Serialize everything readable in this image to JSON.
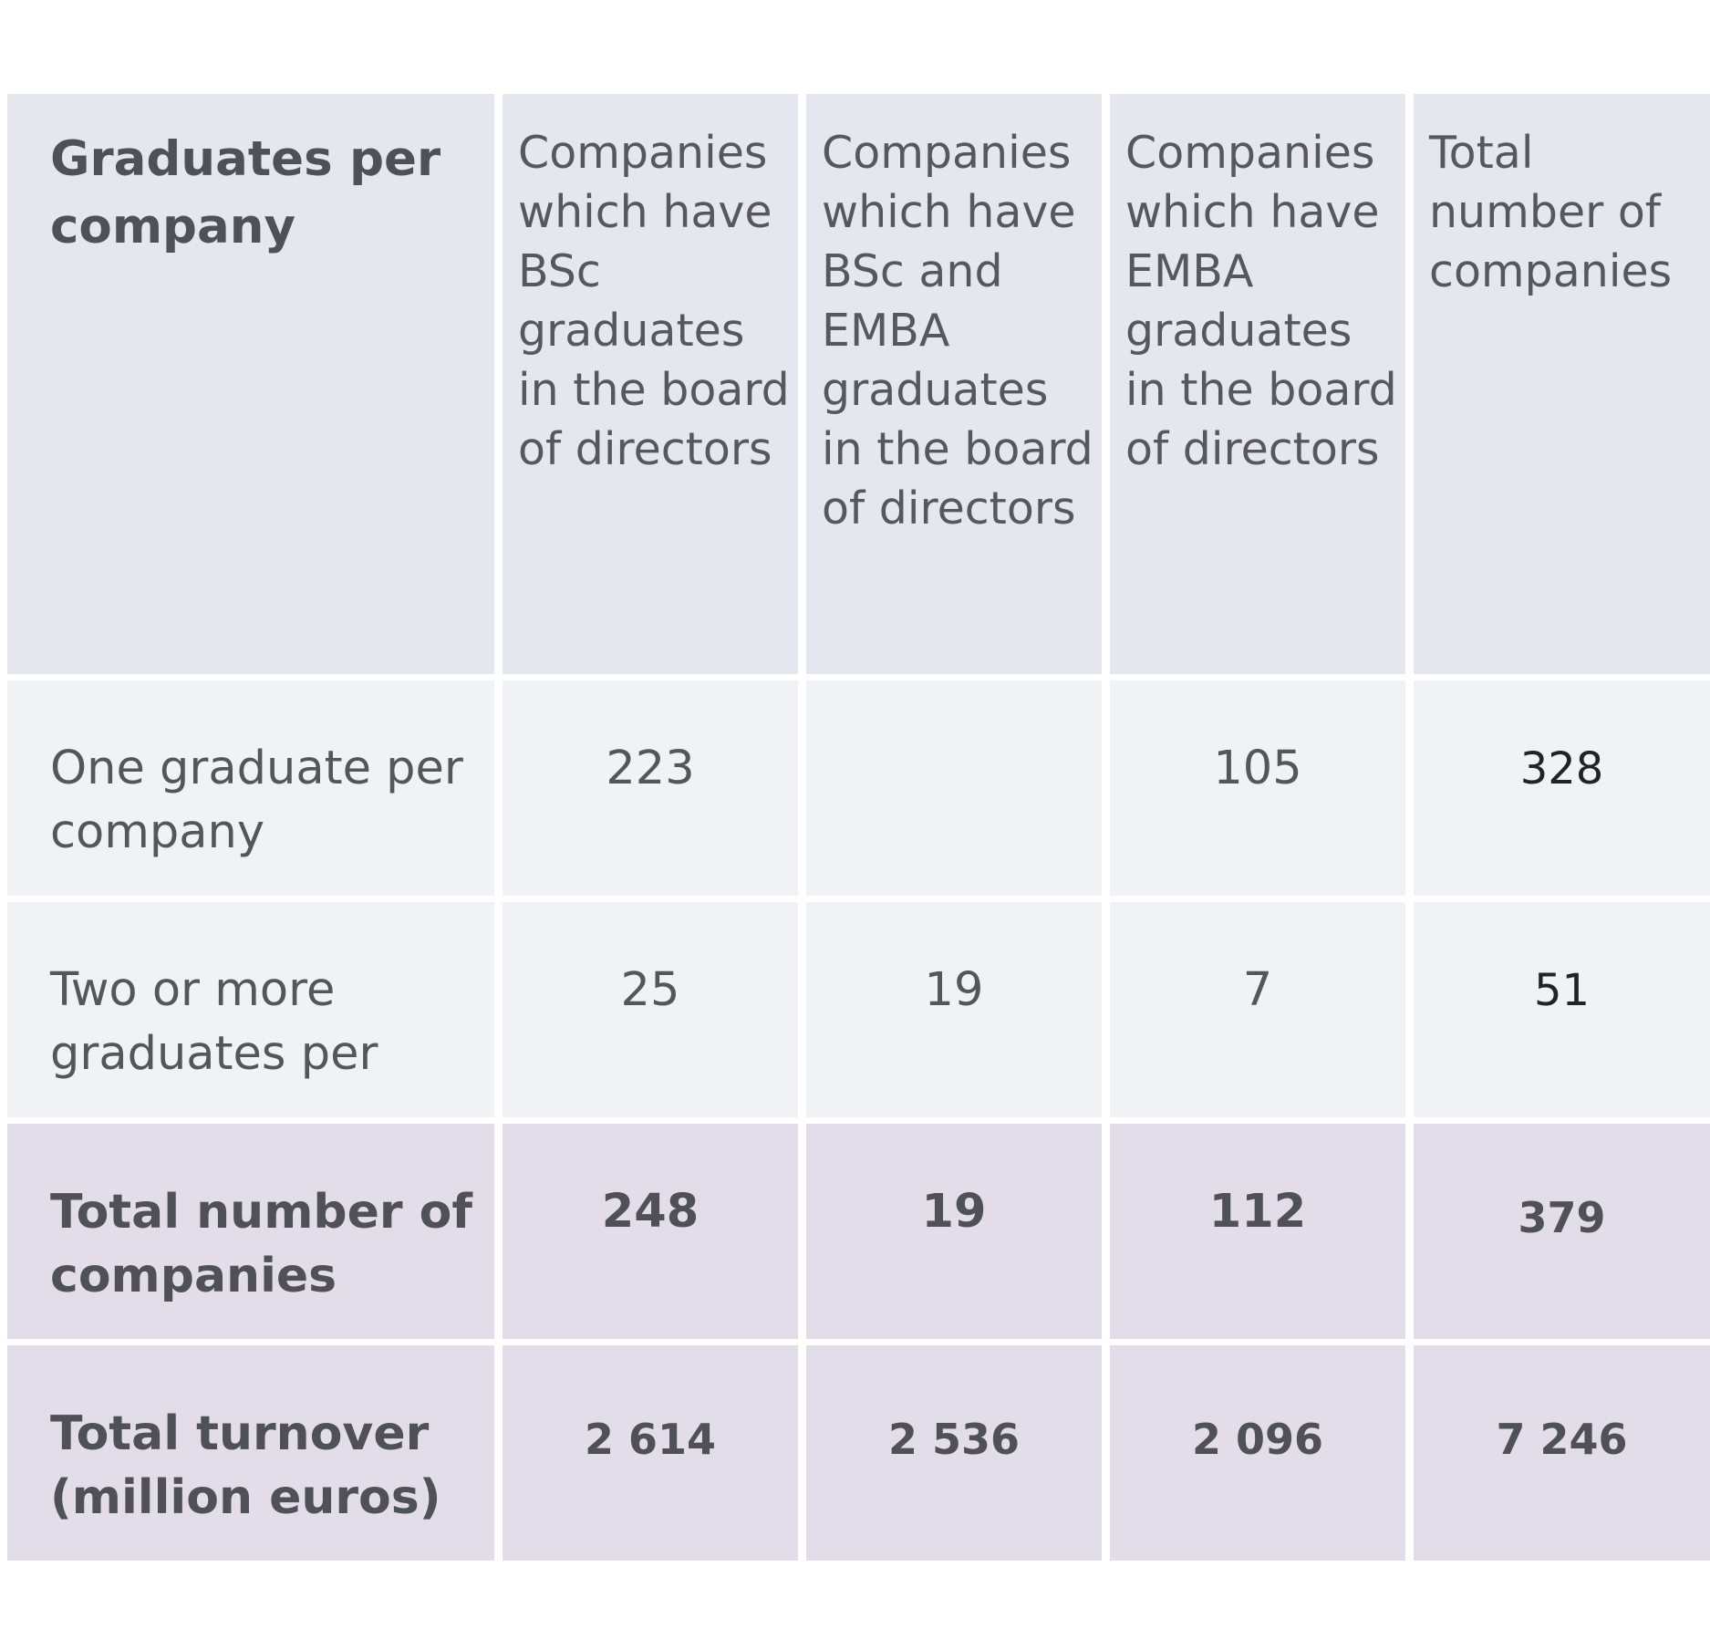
{
  "table": {
    "header": {
      "row_label": "Graduates per company",
      "columns": [
        "Companies which have BSc graduates in the board of directors",
        "Companies which have BSc and EMBA graduates in the board of directors",
        "Companies which have EMBA graduates in the board of directors",
        "Total number of companies"
      ]
    },
    "rows": [
      {
        "label": "One graduate per company",
        "values": [
          "223",
          "",
          "105",
          "328"
        ]
      },
      {
        "label": "Two or more graduates per",
        "values": [
          "25",
          "19",
          "7",
          "51"
        ]
      }
    ],
    "totals": [
      {
        "label": "Total number of companies",
        "values": [
          "248",
          "19",
          "112",
          "379"
        ]
      },
      {
        "label": "Total turnover (million euros)",
        "values": [
          "2 614",
          "2 536",
          "2 096",
          "7 246"
        ]
      }
    ],
    "colors": {
      "header_bg": "#e4e7ee",
      "body_bg": "#f0f2f6",
      "total_bg": "#e2dde9",
      "text": "#54565b"
    }
  }
}
